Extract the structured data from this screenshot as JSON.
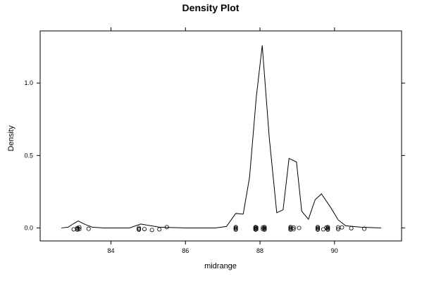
{
  "chart_data": {
    "type": "line",
    "title": "Density Plot",
    "xlabel": "midrange",
    "ylabel": "Density",
    "xlim": [
      82.1,
      91.8
    ],
    "ylim": [
      -0.09,
      1.36
    ],
    "x_ticks": [
      84,
      86,
      88,
      90
    ],
    "y_ticks": [
      0.0,
      0.5,
      1.0
    ],
    "x_tick_labels": [
      "84",
      "86",
      "88",
      "90"
    ],
    "y_tick_labels": [
      "0.0",
      "0.5",
      "1.0"
    ],
    "grid": false,
    "series": [
      {
        "values_xy": [
          [
            82.67,
            0.0
          ],
          [
            82.85,
            0.005
          ],
          [
            83.0,
            0.03
          ],
          [
            83.12,
            0.048
          ],
          [
            83.3,
            0.025
          ],
          [
            83.5,
            0.005
          ],
          [
            83.8,
            0.0
          ],
          [
            84.5,
            0.0
          ],
          [
            84.8,
            0.027
          ],
          [
            85.0,
            0.018
          ],
          [
            85.3,
            0.005
          ],
          [
            85.6,
            0.003
          ],
          [
            86.0,
            0.0
          ],
          [
            86.8,
            0.0
          ],
          [
            87.1,
            0.01
          ],
          [
            87.35,
            0.1
          ],
          [
            87.55,
            0.095
          ],
          [
            87.72,
            0.35
          ],
          [
            87.9,
            0.9
          ],
          [
            88.06,
            1.26
          ],
          [
            88.25,
            0.62
          ],
          [
            88.45,
            0.105
          ],
          [
            88.62,
            0.125
          ],
          [
            88.78,
            0.48
          ],
          [
            88.98,
            0.455
          ],
          [
            89.12,
            0.115
          ],
          [
            89.3,
            0.06
          ],
          [
            89.48,
            0.195
          ],
          [
            89.65,
            0.235
          ],
          [
            89.9,
            0.14
          ],
          [
            90.1,
            0.055
          ],
          [
            90.3,
            0.015
          ],
          [
            90.7,
            0.005
          ],
          [
            91.25,
            0.0
          ]
        ]
      }
    ],
    "rug": {
      "points": [
        [
          83.1,
          0.0
        ],
        [
          83.1,
          -0.006
        ],
        [
          83.1,
          -0.012
        ],
        [
          83.15,
          0.004
        ],
        [
          83.15,
          -0.008
        ],
        [
          83.0,
          -0.01
        ],
        [
          83.4,
          -0.006
        ],
        [
          84.75,
          0.0
        ],
        [
          84.75,
          -0.008
        ],
        [
          84.75,
          -0.012
        ],
        [
          84.9,
          -0.008
        ],
        [
          85.1,
          -0.014
        ],
        [
          85.3,
          -0.01
        ],
        [
          85.5,
          0.006
        ],
        [
          87.35,
          0.006
        ],
        [
          87.35,
          0.0
        ],
        [
          87.35,
          -0.006
        ],
        [
          87.35,
          -0.012
        ],
        [
          87.88,
          0.006
        ],
        [
          87.88,
          0.0
        ],
        [
          87.88,
          -0.006
        ],
        [
          87.88,
          -0.012
        ],
        [
          87.9,
          0.003
        ],
        [
          87.9,
          -0.009
        ],
        [
          88.12,
          0.006
        ],
        [
          88.12,
          0.0
        ],
        [
          88.12,
          -0.006
        ],
        [
          88.12,
          -0.012
        ],
        [
          88.08,
          0.003
        ],
        [
          88.08,
          -0.009
        ],
        [
          88.82,
          0.006
        ],
        [
          88.82,
          0.0
        ],
        [
          88.82,
          -0.006
        ],
        [
          88.82,
          -0.012
        ],
        [
          88.9,
          0.003
        ],
        [
          88.9,
          -0.009
        ],
        [
          89.05,
          0.0
        ],
        [
          89.55,
          0.006
        ],
        [
          89.55,
          0.0
        ],
        [
          89.55,
          -0.006
        ],
        [
          89.55,
          -0.012
        ],
        [
          89.7,
          -0.01
        ],
        [
          89.82,
          0.006
        ],
        [
          89.82,
          0.0
        ],
        [
          89.82,
          -0.006
        ],
        [
          89.82,
          -0.012
        ],
        [
          89.78,
          0.003
        ],
        [
          90.1,
          0.004
        ],
        [
          90.1,
          -0.008
        ],
        [
          90.2,
          0.004
        ],
        [
          90.45,
          -0.002
        ],
        [
          90.8,
          -0.006
        ]
      ]
    }
  }
}
